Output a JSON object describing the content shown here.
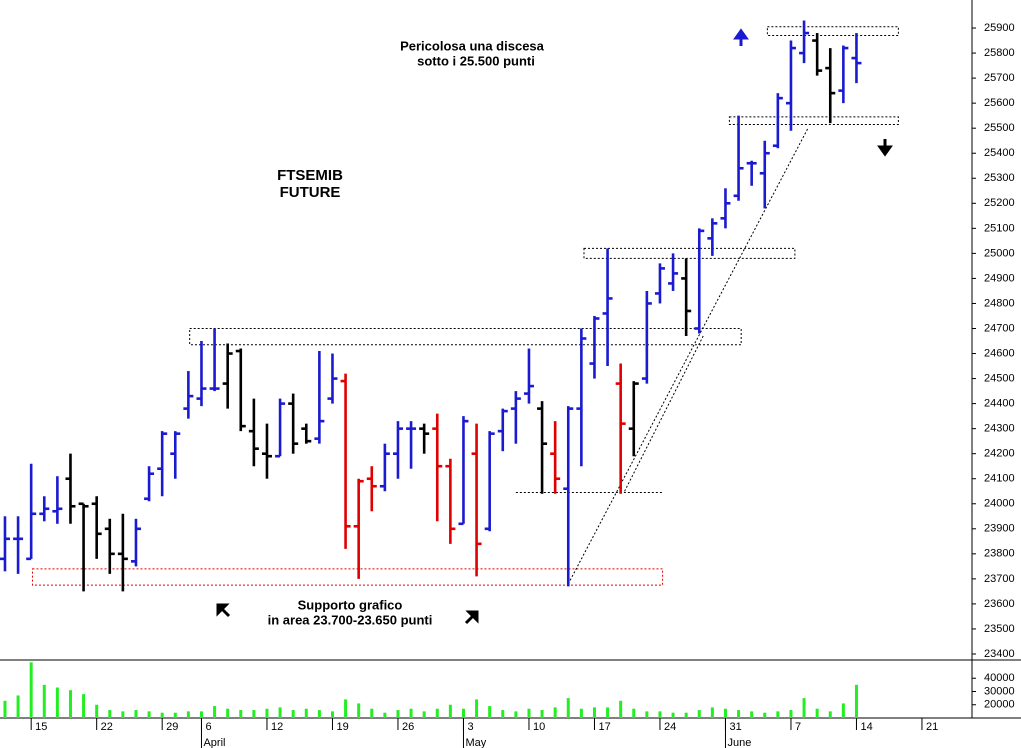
{
  "chart_data": [
    {
      "type": "ohlc",
      "annotations": [
        "Pericolosa una discesa",
        "sotto i 25.500 punti",
        "FTSEMIB",
        "FUTURE",
        "Supporto grafico",
        "in area 23.700-23.650 punti"
      ],
      "x": [
        0,
        1,
        2,
        3,
        4,
        5,
        6,
        7,
        8,
        9,
        10,
        11,
        12,
        13,
        14,
        15,
        16,
        17,
        18,
        19,
        20,
        21,
        22,
        23,
        24,
        25,
        26,
        27,
        28,
        29,
        30,
        31,
        32,
        33,
        34,
        35,
        36,
        37,
        38,
        39,
        40,
        41,
        42,
        43,
        44,
        45,
        46,
        47,
        48,
        49,
        50,
        51,
        52,
        53,
        54,
        55,
        56,
        57,
        58,
        59,
        60,
        61,
        62,
        63,
        64,
        65
      ],
      "open": [
        23780,
        23860,
        23780,
        23960,
        23970,
        24100,
        24000,
        24000,
        23900,
        23800,
        23770,
        24020,
        24140,
        24200,
        24380,
        24420,
        24460,
        24480,
        24610,
        24290,
        24200,
        24190,
        24400,
        24300,
        24260,
        24420,
        24490,
        23910,
        24100,
        24070,
        24200,
        24300,
        24300,
        24300,
        24150,
        23920,
        24200,
        23900,
        24290,
        24380,
        24440,
        24380,
        24200,
        24060,
        24380,
        24560,
        24760,
        24480,
        24300,
        24500,
        24840,
        24880,
        24900,
        24700,
        25060,
        25140,
        25230,
        25360,
        25320,
        25430,
        25600,
        25800,
        25850,
        25740,
        25650,
        25780
      ],
      "high": [
        23950,
        23950,
        24160,
        24030,
        24110,
        24200,
        24000,
        24030,
        23940,
        23960,
        23940,
        24150,
        24290,
        24290,
        24530,
        24650,
        24700,
        24640,
        24620,
        24420,
        24320,
        24420,
        24440,
        24320,
        24610,
        24600,
        24520,
        24100,
        24150,
        24240,
        24330,
        24330,
        24320,
        24360,
        24180,
        24350,
        24320,
        24290,
        24380,
        24450,
        24620,
        24410,
        24330,
        24390,
        24700,
        24750,
        25020,
        24560,
        24490,
        24850,
        24960,
        25000,
        24980,
        25100,
        25140,
        25260,
        25550,
        25370,
        25450,
        25640,
        25850,
        25930,
        25880,
        25820,
        25830,
        25880
      ],
      "low": [
        23730,
        23720,
        23780,
        23930,
        23920,
        23920,
        23650,
        23780,
        23720,
        23650,
        23750,
        24010,
        24030,
        24100,
        24340,
        24390,
        24450,
        24380,
        24290,
        24150,
        24100,
        24190,
        24200,
        24240,
        24240,
        24400,
        23820,
        23700,
        23970,
        24050,
        24100,
        24140,
        24200,
        23930,
        23840,
        23920,
        23710,
        23890,
        24210,
        24240,
        24400,
        24040,
        24040,
        23670,
        24150,
        24500,
        24550,
        24040,
        24190,
        24480,
        24800,
        24850,
        24670,
        24680,
        24990,
        25100,
        25210,
        25270,
        25180,
        25420,
        25490,
        25760,
        25710,
        25520,
        25600,
        25680
      ],
      "close": [
        23860,
        23860,
        23960,
        23980,
        23980,
        23990,
        23990,
        23880,
        23800,
        23780,
        23900,
        24120,
        24280,
        24280,
        24430,
        24460,
        24460,
        24600,
        24310,
        24220,
        24190,
        24400,
        24240,
        24250,
        24330,
        24500,
        23910,
        24090,
        24070,
        24200,
        24300,
        24300,
        24280,
        24150,
        23900,
        24330,
        23840,
        24280,
        24370,
        24420,
        24470,
        24240,
        24100,
        24380,
        24660,
        24740,
        24820,
        24320,
        24480,
        24800,
        24940,
        24920,
        24770,
        25090,
        25120,
        25200,
        25340,
        25360,
        25400,
        25620,
        25820,
        25880,
        25730,
        25640,
        25820,
        25760
      ],
      "colors": [
        "#1a1ad0",
        "#1a1ad0",
        "#1a1ad0",
        "#1a1ad0",
        "#1a1ad0",
        "#000000",
        "#000000",
        "#000000",
        "#000000",
        "#000000",
        "#1a1ad0",
        "#1a1ad0",
        "#1a1ad0",
        "#1a1ad0",
        "#1a1ad0",
        "#1a1ad0",
        "#1a1ad0",
        "#000000",
        "#000000",
        "#000000",
        "#000000",
        "#1a1ad0",
        "#000000",
        "#000000",
        "#1a1ad0",
        "#1a1ad0",
        "#e00000",
        "#e00000",
        "#e00000",
        "#1a1ad0",
        "#1a1ad0",
        "#1a1ad0",
        "#000000",
        "#e00000",
        "#e00000",
        "#1a1ad0",
        "#e00000",
        "#1a1ad0",
        "#1a1ad0",
        "#1a1ad0",
        "#1a1ad0",
        "#000000",
        "#e00000",
        "#1a1ad0",
        "#1a1ad0",
        "#1a1ad0",
        "#1a1ad0",
        "#e00000",
        "#000000",
        "#1a1ad0",
        "#1a1ad0",
        "#1a1ad0",
        "#000000",
        "#1a1ad0",
        "#1a1ad0",
        "#1a1ad0",
        "#1a1ad0",
        "#1a1ad0",
        "#1a1ad0",
        "#1a1ad0",
        "#1a1ad0",
        "#1a1ad0",
        "#000000",
        "#000000",
        "#1a1ad0",
        "#1a1ad0"
      ],
      "xlim": [
        -0.38,
        73.82
      ],
      "ylim": [
        23376,
        26012
      ],
      "yticks": [
        23400,
        23500,
        23600,
        23700,
        23800,
        23900,
        24000,
        24100,
        24200,
        24300,
        24400,
        24500,
        24600,
        24700,
        24800,
        24900,
        25000,
        25100,
        25200,
        25300,
        25400,
        25500,
        25600,
        25700,
        25800,
        25900
      ],
      "xticks": [
        {
          "value": 2,
          "label": "15"
        },
        {
          "value": 7,
          "label": "22"
        },
        {
          "value": 12,
          "label": "29"
        },
        {
          "value": 15,
          "label": "6"
        },
        {
          "value": 20,
          "label": "12"
        },
        {
          "value": 25,
          "label": "19"
        },
        {
          "value": 30,
          "label": "26"
        },
        {
          "value": 35,
          "label": "3"
        },
        {
          "value": 40,
          "label": "10"
        },
        {
          "value": 45,
          "label": "17"
        },
        {
          "value": 50,
          "label": "24"
        },
        {
          "value": 55,
          "label": "31"
        },
        {
          "value": 60,
          "label": "7"
        },
        {
          "value": 65,
          "label": "14"
        },
        {
          "value": 70,
          "label": "21"
        }
      ],
      "month_ticks": [
        {
          "value": 15,
          "label": "April"
        },
        {
          "value": 35,
          "label": "May"
        },
        {
          "value": 55,
          "label": "June"
        }
      ],
      "zones": [
        {
          "x": [
            2.1,
            50.2
          ],
          "y": [
            23675,
            23740
          ],
          "color": "#e00000"
        },
        {
          "x": [
            14.1,
            56.2
          ],
          "y": [
            24635,
            24700
          ],
          "color": "#000000"
        },
        {
          "x": [
            44.2,
            60.3
          ],
          "y": [
            24980,
            25020
          ],
          "color": "#000000"
        },
        {
          "x": [
            55.3,
            68.2
          ],
          "y": [
            25515,
            25545
          ],
          "color": "#000000"
        },
        {
          "x": [
            58.2,
            68.2
          ],
          "y": [
            25870,
            25905
          ],
          "color": "#000000"
        },
        {
          "x": [
            39,
            50.2
          ],
          "y": [
            24045,
            24045
          ],
          "color": "#000000"
        }
      ],
      "trendlines": [
        {
          "x": [
            43,
            61.3
          ],
          "y": [
            23680,
            25500
          ]
        },
        {
          "x": [
            47.3,
            53.3
          ],
          "y": [
            24050,
            24670
          ]
        }
      ]
    },
    {
      "type": "bar",
      "x": [
        0,
        1,
        2,
        3,
        4,
        5,
        6,
        7,
        8,
        9,
        10,
        11,
        12,
        13,
        14,
        15,
        16,
        17,
        18,
        19,
        20,
        21,
        22,
        23,
        24,
        25,
        26,
        27,
        28,
        29,
        30,
        31,
        32,
        33,
        34,
        35,
        36,
        37,
        38,
        39,
        40,
        41,
        42,
        43,
        44,
        45,
        46,
        47,
        48,
        49,
        50,
        51,
        52,
        53,
        54,
        55,
        56,
        57,
        58,
        59,
        60,
        61,
        62,
        63,
        64,
        65
      ],
      "values": [
        23000,
        27000,
        52000,
        35000,
        33000,
        31000,
        28000,
        20000,
        16000,
        15000,
        16000,
        15000,
        14000,
        14000,
        15000,
        15000,
        19000,
        17000,
        16000,
        16000,
        17000,
        18000,
        16000,
        17000,
        16000,
        15000,
        24000,
        21000,
        17000,
        14000,
        16000,
        17000,
        15000,
        17000,
        20000,
        17000,
        24000,
        19000,
        16000,
        15000,
        17000,
        16000,
        18000,
        25000,
        17000,
        18000,
        18000,
        23000,
        17000,
        15000,
        15000,
        14000,
        14000,
        16000,
        18000,
        17000,
        16000,
        15000,
        14000,
        15000,
        16000,
        25000,
        17000,
        15000,
        21000,
        35000
      ],
      "color": "#22ee22",
      "xlim": [
        -0.38,
        73.82
      ],
      "ylim": [
        10000,
        53000
      ],
      "yticks": [
        20000,
        30000,
        40000
      ]
    }
  ]
}
